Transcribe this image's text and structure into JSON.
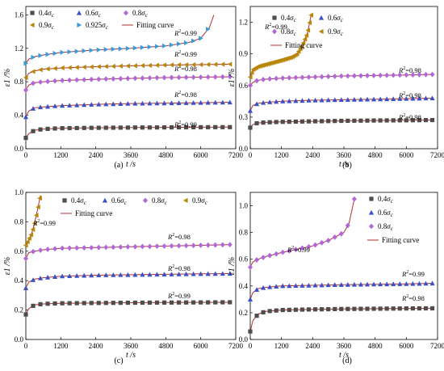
{
  "figure": {
    "panels": [
      "(a)",
      "(b)",
      "(c)",
      "(d)"
    ],
    "yaxis_label": "ε1 /%",
    "xaxis_label": "t /s"
  },
  "chart_data": [
    {
      "panel": "(a)",
      "type": "scatter",
      "xlabel": "t /s",
      "ylabel": "ε1 /%",
      "xlim": [
        0,
        7200
      ],
      "ylim": [
        0,
        1.7
      ],
      "xticks": [
        0,
        1200,
        2400,
        3600,
        4800,
        6000,
        7200
      ],
      "yticks": [
        0.0,
        0.4,
        0.8,
        1.2,
        1.6
      ],
      "legend": [
        {
          "label": "0.4σc",
          "marker": "square",
          "color": "#4d4d4d"
        },
        {
          "label": "0.6σc",
          "marker": "triangle",
          "color": "#3a4fc8"
        },
        {
          "label": "0.8σc",
          "marker": "diamond",
          "color": "#b366d8"
        },
        {
          "label": "0.9σc",
          "marker": "triangle-left",
          "color": "#b8860b"
        },
        {
          "label": "0.925σc",
          "marker": "triangle-right",
          "color": "#3a9bd8"
        },
        {
          "label": "Fitting curve",
          "marker": "line",
          "color": "#b03030"
        }
      ],
      "series": [
        {
          "name": "0.4σc",
          "r2": "R2=0.99",
          "points": [
            [
              0,
              0.13
            ],
            [
              100,
              0.18
            ],
            [
              300,
              0.22
            ],
            [
              600,
              0.235
            ],
            [
              1200,
              0.245
            ],
            [
              2400,
              0.25
            ],
            [
              3600,
              0.253
            ],
            [
              4800,
              0.255
            ],
            [
              6000,
              0.257
            ],
            [
              7000,
              0.258
            ]
          ]
        },
        {
          "name": "0.6σc",
          "r2": "R2=0.98",
          "points": [
            [
              0,
              0.38
            ],
            [
              100,
              0.45
            ],
            [
              300,
              0.49
            ],
            [
              600,
              0.5
            ],
            [
              1200,
              0.515
            ],
            [
              2400,
              0.53
            ],
            [
              3600,
              0.54
            ],
            [
              4800,
              0.545
            ],
            [
              6000,
              0.55
            ],
            [
              7000,
              0.555
            ]
          ]
        },
        {
          "name": "0.8σc",
          "r2": "R2=0.98",
          "points": [
            [
              0,
              0.7
            ],
            [
              100,
              0.76
            ],
            [
              300,
              0.79
            ],
            [
              600,
              0.8
            ],
            [
              1200,
              0.815
            ],
            [
              2400,
              0.83
            ],
            [
              3600,
              0.84
            ],
            [
              4800,
              0.85
            ],
            [
              6000,
              0.855
            ],
            [
              7000,
              0.86
            ]
          ]
        },
        {
          "name": "0.9σc",
          "r2": "R2=0.99",
          "points": [
            [
              0,
              0.85
            ],
            [
              100,
              0.9
            ],
            [
              300,
              0.93
            ],
            [
              600,
              0.95
            ],
            [
              1200,
              0.965
            ],
            [
              2400,
              0.98
            ],
            [
              3600,
              0.99
            ],
            [
              4800,
              1.0
            ],
            [
              6000,
              1.005
            ],
            [
              7000,
              1.01
            ]
          ]
        },
        {
          "name": "0.925σc",
          "r2": "R2=0.99",
          "points": [
            [
              0,
              1.02
            ],
            [
              100,
              1.07
            ],
            [
              300,
              1.1
            ],
            [
              600,
              1.12
            ],
            [
              1200,
              1.15
            ],
            [
              2400,
              1.18
            ],
            [
              3600,
              1.2
            ],
            [
              4800,
              1.23
            ],
            [
              5600,
              1.27
            ],
            [
              6000,
              1.32
            ],
            [
              6300,
              1.45
            ],
            [
              6450,
              1.6
            ]
          ]
        }
      ]
    },
    {
      "panel": "(b)",
      "type": "scatter",
      "xlabel": "t /s",
      "ylabel": "ε1 /%",
      "xlim": [
        0,
        7200
      ],
      "ylim": [
        0,
        1.35
      ],
      "xticks": [
        0,
        1200,
        2400,
        3600,
        4800,
        6000,
        7200
      ],
      "yticks": [
        0.0,
        0.3,
        0.6,
        0.9,
        1.2
      ],
      "legend": [
        {
          "label": "0.4σc",
          "marker": "square",
          "color": "#4d4d4d"
        },
        {
          "label": "0.6σc",
          "marker": "triangle",
          "color": "#3a4fc8"
        },
        {
          "label": "0.8σc",
          "marker": "diamond",
          "color": "#b366d8"
        },
        {
          "label": "0.9σc",
          "marker": "triangle-left",
          "color": "#b8860b"
        },
        {
          "label": "Fitting curve",
          "marker": "line",
          "color": "#b03030"
        }
      ],
      "series": [
        {
          "name": "0.4σc",
          "r2": "R2=0.98",
          "points": [
            [
              0,
              0.2
            ],
            [
              100,
              0.23
            ],
            [
              300,
              0.245
            ],
            [
              600,
              0.25
            ],
            [
              1200,
              0.255
            ],
            [
              2400,
              0.26
            ],
            [
              3600,
              0.265
            ],
            [
              4800,
              0.268
            ],
            [
              6000,
              0.27
            ],
            [
              7000,
              0.272
            ]
          ]
        },
        {
          "name": "0.6σc",
          "r2": "R2=0.98",
          "points": [
            [
              0,
              0.36
            ],
            [
              100,
              0.41
            ],
            [
              300,
              0.43
            ],
            [
              600,
              0.44
            ],
            [
              1200,
              0.45
            ],
            [
              2400,
              0.46
            ],
            [
              3600,
              0.465
            ],
            [
              4800,
              0.47
            ],
            [
              6000,
              0.475
            ],
            [
              7000,
              0.48
            ]
          ]
        },
        {
          "name": "0.8σc",
          "r2": "R2=0.98",
          "points": [
            [
              0,
              0.6
            ],
            [
              100,
              0.63
            ],
            [
              300,
              0.65
            ],
            [
              600,
              0.66
            ],
            [
              1200,
              0.67
            ],
            [
              2400,
              0.68
            ],
            [
              3600,
              0.69
            ],
            [
              4800,
              0.695
            ],
            [
              6000,
              0.7
            ],
            [
              7000,
              0.705
            ]
          ]
        },
        {
          "name": "0.9σc",
          "r2": "R2=0.99",
          "points": [
            [
              0,
              0.68
            ],
            [
              100,
              0.75
            ],
            [
              300,
              0.78
            ],
            [
              600,
              0.8
            ],
            [
              1200,
              0.84
            ],
            [
              1600,
              0.87
            ],
            [
              1800,
              0.9
            ],
            [
              2000,
              0.98
            ],
            [
              2200,
              1.1
            ],
            [
              2350,
              1.28
            ]
          ]
        }
      ]
    },
    {
      "panel": "(c)",
      "type": "scatter",
      "xlabel": "t /s",
      "ylabel": "ε1 /%",
      "xlim": [
        0,
        7200
      ],
      "ylim": [
        0,
        1.0
      ],
      "xticks": [
        0,
        1200,
        2400,
        3600,
        4800,
        6000,
        7200
      ],
      "yticks": [
        0.0,
        0.2,
        0.4,
        0.6,
        0.8,
        1.0
      ],
      "legend": [
        {
          "label": "0.4σc",
          "marker": "square",
          "color": "#4d4d4d"
        },
        {
          "label": "0.6σc",
          "marker": "triangle",
          "color": "#3a4fc8"
        },
        {
          "label": "0.8σc",
          "marker": "diamond",
          "color": "#b366d8"
        },
        {
          "label": "0.9σc",
          "marker": "triangle-left",
          "color": "#b8860b"
        },
        {
          "label": "Fitting curve",
          "marker": "line",
          "color": "#b03030"
        }
      ],
      "series": [
        {
          "name": "0.4σc",
          "r2": "R2=0.99",
          "points": [
            [
              0,
              0.17
            ],
            [
              100,
              0.21
            ],
            [
              300,
              0.235
            ],
            [
              600,
              0.242
            ],
            [
              1200,
              0.246
            ],
            [
              2400,
              0.248
            ],
            [
              3600,
              0.25
            ],
            [
              4800,
              0.251
            ],
            [
              6000,
              0.252
            ],
            [
              7000,
              0.253
            ]
          ]
        },
        {
          "name": "0.6σc",
          "r2": "R2=0.98",
          "points": [
            [
              0,
              0.35
            ],
            [
              100,
              0.39
            ],
            [
              300,
              0.41
            ],
            [
              600,
              0.42
            ],
            [
              1200,
              0.43
            ],
            [
              2400,
              0.437
            ],
            [
              3600,
              0.44
            ],
            [
              4800,
              0.443
            ],
            [
              6000,
              0.446
            ],
            [
              7000,
              0.448
            ]
          ]
        },
        {
          "name": "0.8σc",
          "r2": "R2=0.98",
          "points": [
            [
              0,
              0.55
            ],
            [
              100,
              0.59
            ],
            [
              300,
              0.6
            ],
            [
              600,
              0.61
            ],
            [
              1200,
              0.62
            ],
            [
              2400,
              0.625
            ],
            [
              3600,
              0.63
            ],
            [
              4800,
              0.635
            ],
            [
              6000,
              0.64
            ],
            [
              7000,
              0.645
            ]
          ]
        },
        {
          "name": "0.9σc",
          "r2": "R2=0.99",
          "points": [
            [
              0,
              0.64
            ],
            [
              100,
              0.68
            ],
            [
              200,
              0.72
            ],
            [
              300,
              0.79
            ],
            [
              400,
              0.88
            ],
            [
              500,
              0.98
            ]
          ]
        }
      ]
    },
    {
      "panel": "(d)",
      "type": "scatter",
      "xlabel": "t /s",
      "ylabel": "ε1 /%",
      "xlim": [
        0,
        7200
      ],
      "ylim": [
        0,
        1.1
      ],
      "xticks": [
        0,
        1200,
        2400,
        3600,
        4800,
        6000,
        7200
      ],
      "yticks": [
        0.0,
        0.2,
        0.4,
        0.6,
        0.8,
        1.0
      ],
      "legend": [
        {
          "label": "0.4σc",
          "marker": "square",
          "color": "#4d4d4d"
        },
        {
          "label": "0.6σc",
          "marker": "triangle",
          "color": "#3a4fc8"
        },
        {
          "label": "0.8σc",
          "marker": "diamond",
          "color": "#b366d8"
        },
        {
          "label": "Fitting curve",
          "marker": "line",
          "color": "#b03030"
        }
      ],
      "series": [
        {
          "name": "0.4σc",
          "r2": "R2=0.98",
          "points": [
            [
              0,
              0.06
            ],
            [
              100,
              0.14
            ],
            [
              300,
              0.19
            ],
            [
              600,
              0.21
            ],
            [
              1200,
              0.22
            ],
            [
              2400,
              0.225
            ],
            [
              3600,
              0.228
            ],
            [
              4800,
              0.23
            ],
            [
              6000,
              0.232
            ],
            [
              7000,
              0.233
            ]
          ]
        },
        {
          "name": "0.6σc",
          "r2": "R2=0.99",
          "points": [
            [
              0,
              0.3
            ],
            [
              100,
              0.35
            ],
            [
              300,
              0.38
            ],
            [
              600,
              0.39
            ],
            [
              1200,
              0.4
            ],
            [
              2400,
              0.405
            ],
            [
              3600,
              0.41
            ],
            [
              4800,
              0.413
            ],
            [
              6000,
              0.416
            ],
            [
              7000,
              0.42
            ]
          ]
        },
        {
          "name": "0.8σc",
          "r2": "R2=0.99",
          "points": [
            [
              0,
              0.54
            ],
            [
              100,
              0.58
            ],
            [
              300,
              0.6
            ],
            [
              600,
              0.62
            ],
            [
              1200,
              0.65
            ],
            [
              2400,
              0.7
            ],
            [
              3000,
              0.74
            ],
            [
              3600,
              0.8
            ],
            [
              3800,
              0.87
            ],
            [
              4000,
              1.05
            ]
          ]
        }
      ]
    }
  ]
}
